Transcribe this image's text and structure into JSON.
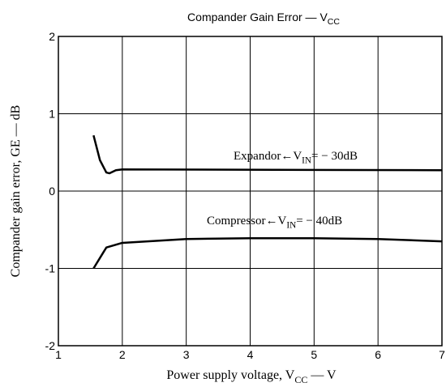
{
  "chart_data": {
    "type": "line",
    "title": [
      {
        "text": "Compander Gain Error — V"
      },
      {
        "text": "CC",
        "sub": true
      }
    ],
    "xlabel": [
      {
        "text": "Power supply voltage, V"
      },
      {
        "text": "CC",
        "sub": true
      },
      {
        "text": " — V"
      }
    ],
    "ylabel": "Compander gain error, GE — dB",
    "xlim": [
      1,
      7
    ],
    "xticks": [
      1,
      2,
      3,
      4,
      5,
      6,
      7
    ],
    "ylim": [
      -2,
      2
    ],
    "yticks": [
      -2,
      -1,
      0,
      1,
      2
    ],
    "grid": true,
    "series": [
      {
        "color": "#000000",
        "x": [
          1.55,
          1.65,
          1.75,
          1.8,
          1.9,
          2,
          7
        ],
        "values": [
          0.72,
          0.4,
          0.24,
          0.23,
          0.27,
          0.28,
          0.27
        ]
      },
      {
        "color": "#000000",
        "x": [
          1.55,
          1.75,
          2,
          3,
          4,
          5,
          6,
          7
        ],
        "values": [
          -1.0,
          -0.73,
          -0.67,
          -0.62,
          -0.61,
          -0.61,
          -0.62,
          -0.65
        ]
      }
    ],
    "annotations": [
      [
        {
          "text": "Expandor←V"
        },
        {
          "text": "IN",
          "sub": true
        },
        {
          "text": "= − 30dB"
        }
      ],
      [
        {
          "text": "Compressor←V"
        },
        {
          "text": "IN",
          "sub": true
        },
        {
          "text": "= − 40dB"
        }
      ]
    ]
  }
}
